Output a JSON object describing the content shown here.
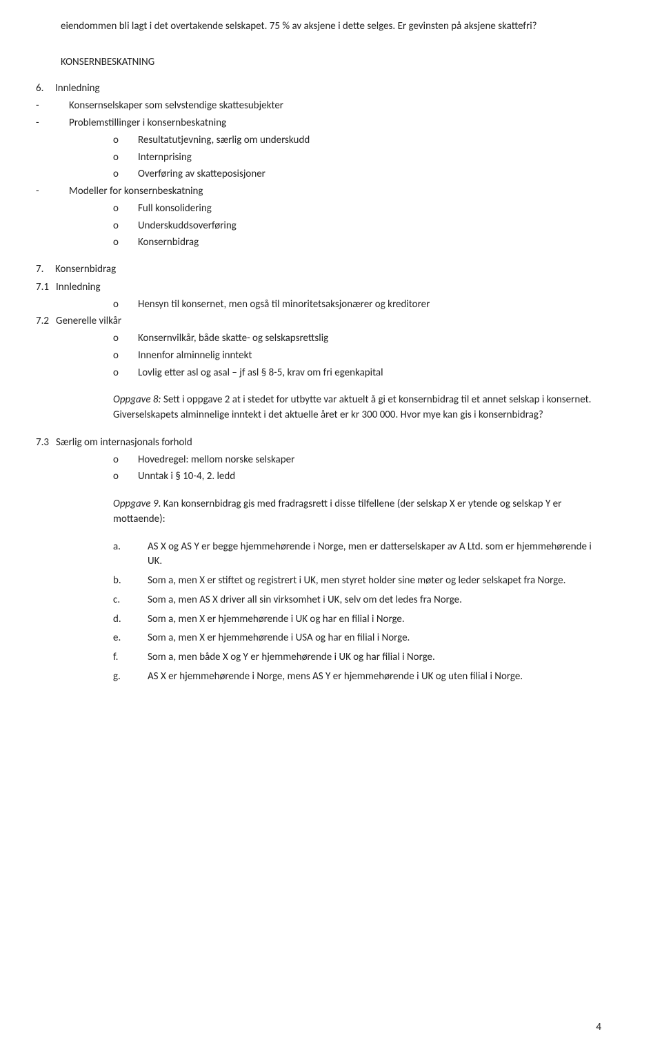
{
  "colors": {
    "text": "#222222",
    "background": "#ffffff"
  },
  "typography": {
    "body_fontsize_pt": 11,
    "font_family": "Calibri"
  },
  "intro_para": "eiendommen bli lagt i det overtakende selskapet. 75 % av aksjene i dette selges. Er gevinsten på aksjene skattefri?",
  "section_title": "KONSERNBESKATNING",
  "s6": {
    "num": "6.",
    "title": "Innledning",
    "b1": {
      "dash": "-",
      "text": "Konsernselskaper som selvstendige skattesubjekter"
    },
    "b2": {
      "dash": "-",
      "text": "Problemstillinger i konsernbeskatning"
    },
    "b2_1": {
      "m": "o",
      "text": "Resultatutjevning, særlig om underskudd"
    },
    "b2_2": {
      "m": "o",
      "text": "Internprising"
    },
    "b2_3": {
      "m": "o",
      "text": "Overføring av skatteposisjoner"
    },
    "b3": {
      "dash": "-",
      "text": "Modeller for konsernbeskatning"
    },
    "b3_1": {
      "m": "o",
      "text": "Full konsolidering"
    },
    "b3_2": {
      "m": "o",
      "text": "Underskuddsoverføring"
    },
    "b3_3": {
      "m": "o",
      "text": "Konsernbidrag"
    }
  },
  "s7": {
    "num": "7.",
    "title": "Konsernbidrag",
    "s7_1": {
      "label": "7.1",
      "title": "Innledning",
      "i1": {
        "m": "o",
        "text": "Hensyn til konsernet, men også til minoritetsaksjonærer og kreditorer"
      }
    },
    "s7_2": {
      "label": "7.2",
      "title": "Generelle vilkår",
      "i1": {
        "m": "o",
        "text": "Konsernvilkår, både skatte- og selskapsrettslig"
      },
      "i2": {
        "m": "o",
        "text": "Innenfor alminnelig inntekt"
      },
      "i3": {
        "m": "o",
        "text": "Lovlig etter asl og asal – jf asl § 8-5, krav om fri egenkapital"
      }
    },
    "oppgave8": {
      "label": "Oppgave 8:",
      "text": " Sett i oppgave 2 at i stedet for utbytte var aktuelt å gi et konsernbidrag til et annet selskap i konsernet. Giverselskapets alminnelige inntekt i det aktuelle året er kr 300 000. Hvor mye kan gis i konsernbidrag?"
    },
    "s7_3": {
      "label": "7.3",
      "title": "Særlig om internasjonals forhold",
      "i1": {
        "m": "o",
        "text": "Hovedregel: mellom norske selskaper"
      },
      "i2": {
        "m": "o",
        "text": "Unntak i § 10-4, 2. ledd"
      }
    },
    "oppgave9": {
      "label": "Oppgave 9",
      "text": ". Kan konsernbidrag gis med fradragsrett i disse tilfellene (der selskap X er ytende og selskap Y er mottaende):"
    },
    "letters": {
      "a": {
        "l": "a.",
        "t": "AS X og AS Y er begge hjemmehørende i Norge, men er datterselskaper av A Ltd. som er hjemmehørende i UK."
      },
      "b": {
        "l": "b.",
        "t": "Som a, men X er stiftet og registrert i UK, men styret holder sine møter og leder selskapet fra Norge."
      },
      "c": {
        "l": "c.",
        "t": "Som a, men AS X driver all sin virksomhet i UK, selv om det ledes fra Norge."
      },
      "d": {
        "l": "d.",
        "t": "Som a, men X er hjemmehørende i UK og har en filial i Norge."
      },
      "e": {
        "l": "e.",
        "t": "Som a, men X er hjemmehørende i USA og har en filial i Norge."
      },
      "f": {
        "l": "f.",
        "t": "Som a, men både X og Y er hjemmehørende i UK og har filial i Norge."
      },
      "g": {
        "l": "g.",
        "t": "AS X er hjemmehørende i Norge, mens AS Y er hjemmehørende i UK og uten filial i Norge."
      }
    }
  },
  "page_number": "4"
}
